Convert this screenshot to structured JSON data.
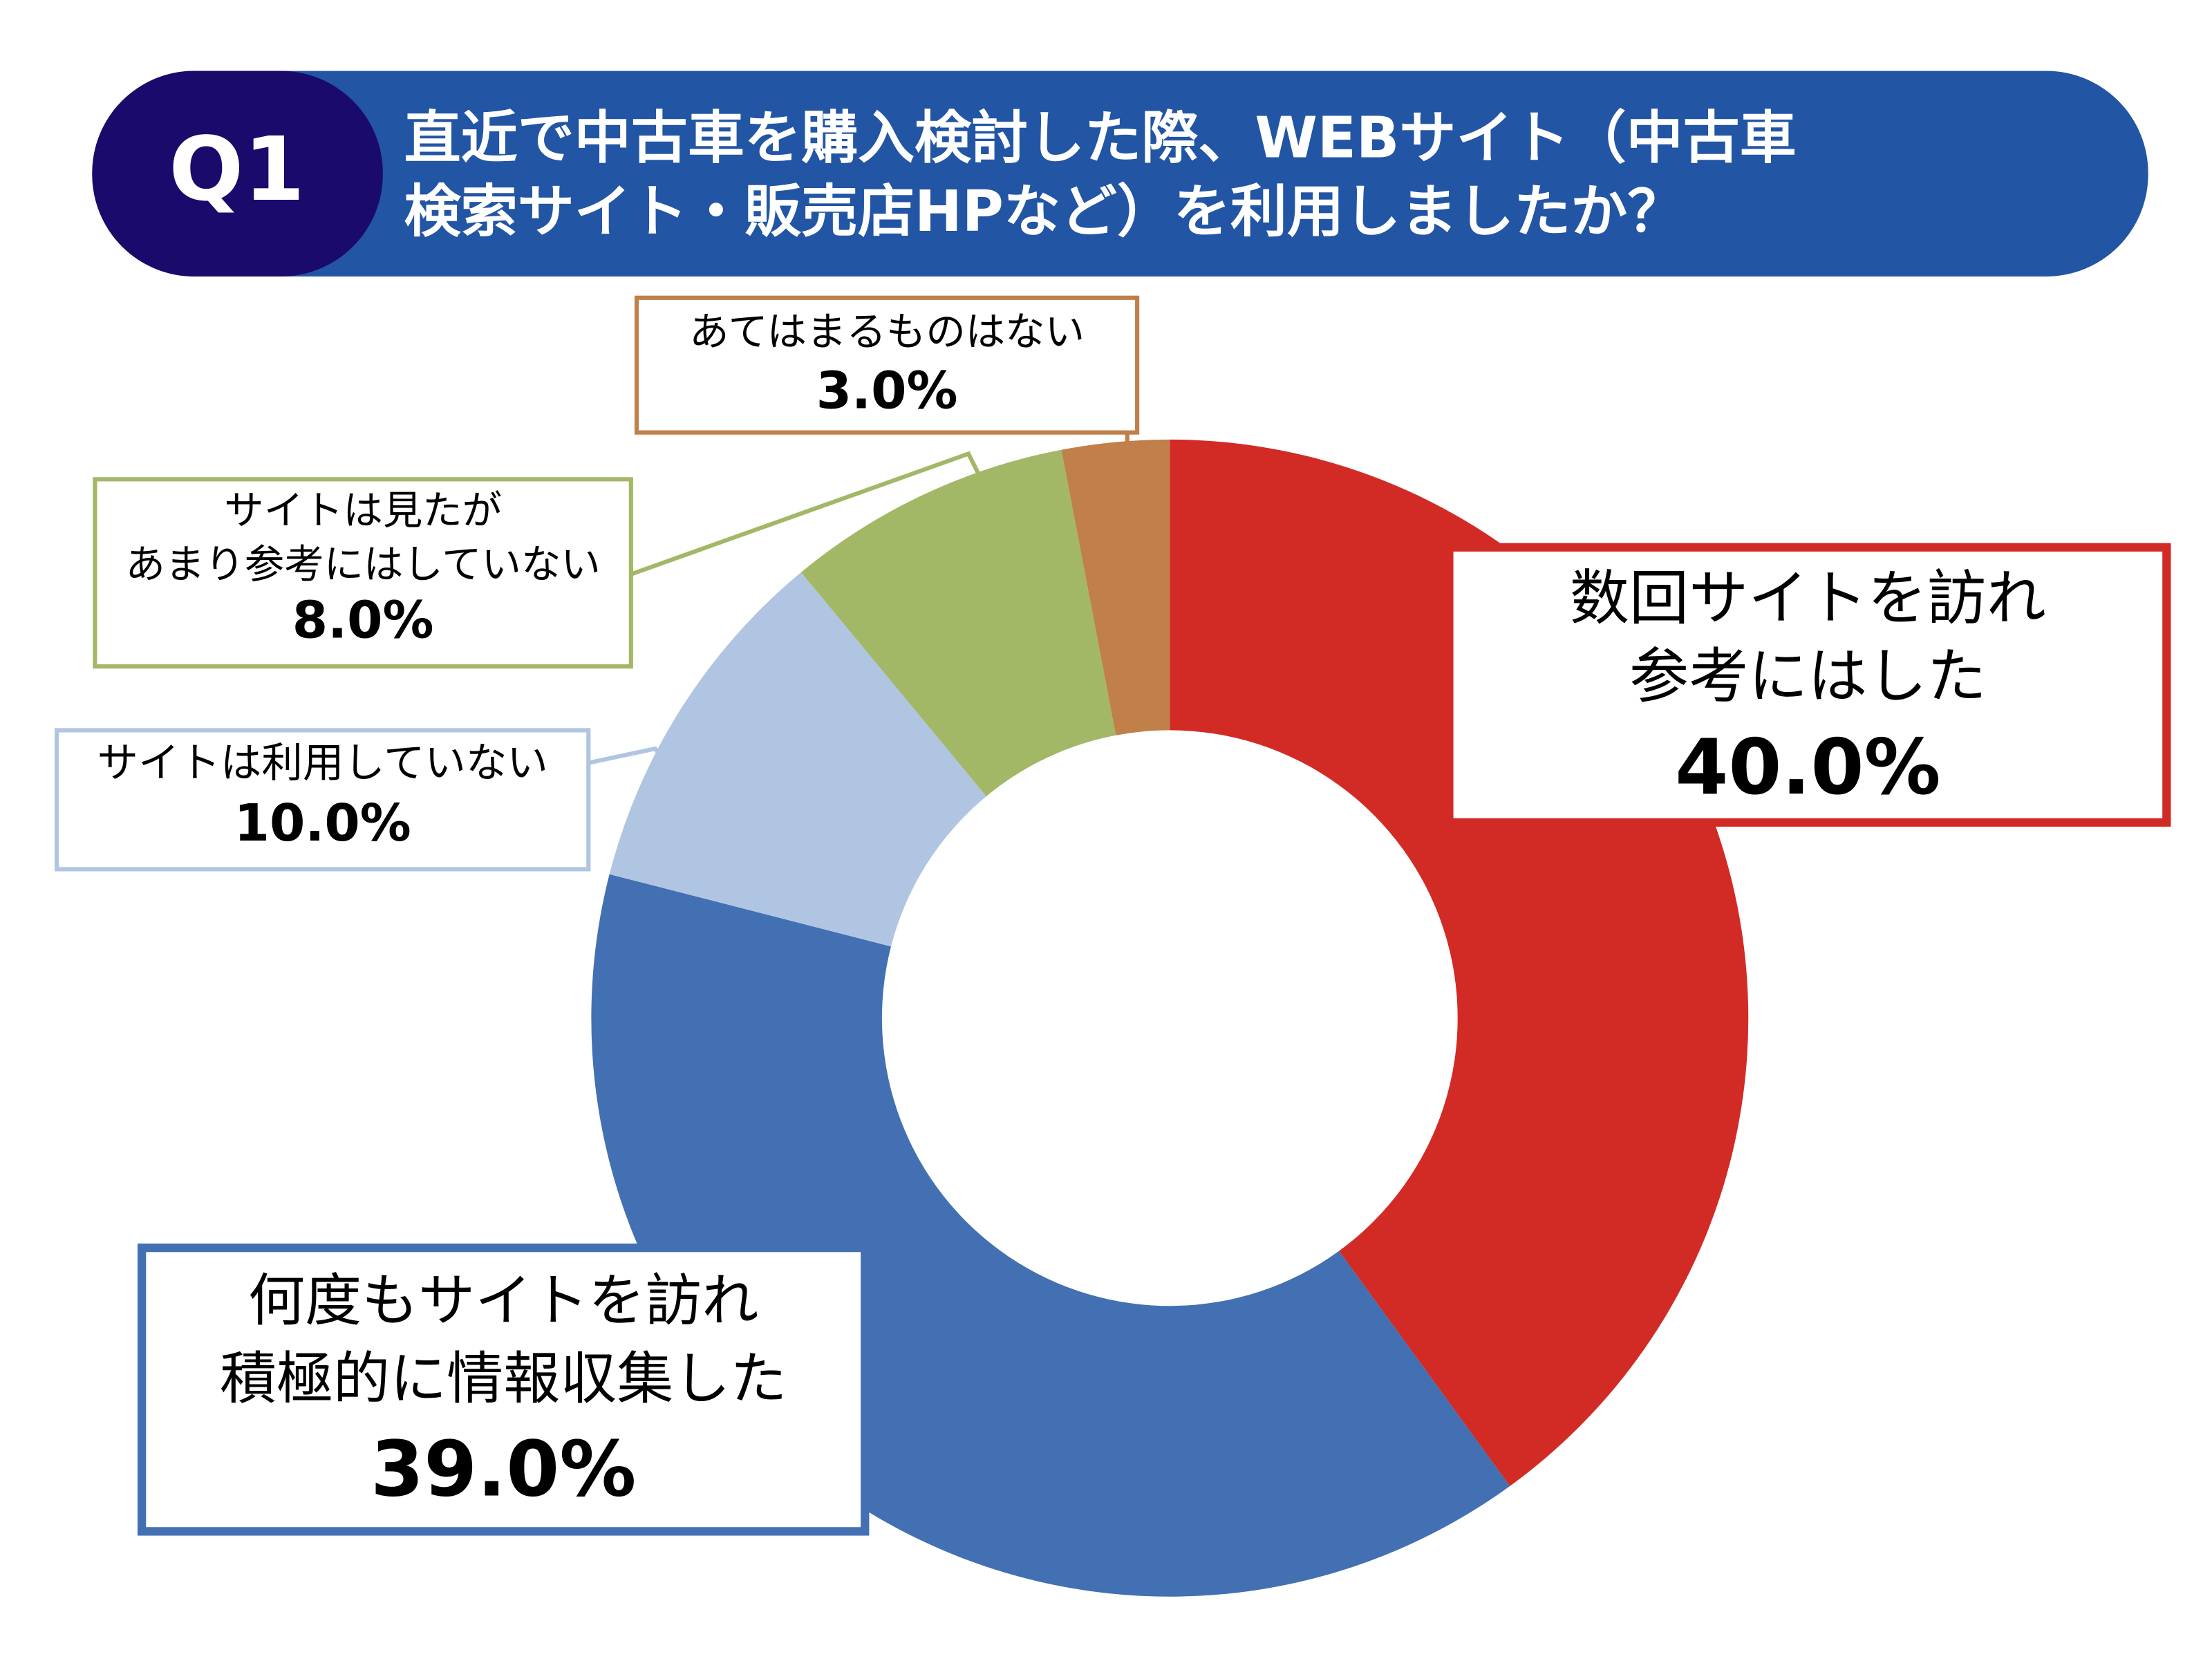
{
  "chart_data": {
    "type": "donut",
    "title_badge": "Q1",
    "title": [
      "直近で中古車を購入検討した際、WEBサイト（中古車",
      "検索サイト・販売店HPなど）を利用しましたか？"
    ],
    "categories": [
      [
        "数回サイトを訪れ",
        "参考にはした"
      ],
      [
        "何度もサイトを訪れ",
        "積極的に情報収集した"
      ],
      [
        "サイトは利用していない"
      ],
      [
        "サイトは見たが",
        "あまり参考にはしていない"
      ],
      [
        "あてはまるものはない"
      ]
    ],
    "values": [
      40,
      39,
      10,
      8,
      3
    ],
    "value_labels": [
      "40.0%",
      "39.0%",
      "10.0%",
      "8.0%",
      "3.0%"
    ],
    "colors": [
      "#d22b25",
      "#4270b3",
      "#b0c5e1",
      "#a3b866",
      "#c17f4a"
    ]
  }
}
